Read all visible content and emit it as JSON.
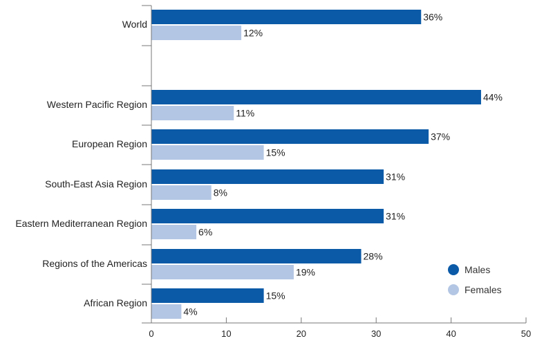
{
  "chart_data": {
    "type": "bar",
    "orientation": "horizontal",
    "categories": [
      "World",
      "Western Pacific Region",
      "European Region",
      "South-East Asia Region",
      "Eastern Mediterranean Region",
      "Regions of the Americas",
      "African Region"
    ],
    "series": [
      {
        "name": "Males",
        "color": "#0a5aa8",
        "values": [
          36,
          44,
          37,
          31,
          31,
          28,
          15
        ]
      },
      {
        "name": "Females",
        "color": "#b3c6e3",
        "values": [
          12,
          11,
          15,
          8,
          6,
          19,
          4
        ]
      }
    ],
    "value_labels": {
      "Males": [
        "36%",
        "44%",
        "37%",
        "31%",
        "31%",
        "28%",
        "15%"
      ],
      "Females": [
        "12%",
        "11%",
        "15%",
        "8%",
        "6%",
        "19%",
        "4%"
      ]
    },
    "xlim": [
      0,
      50
    ],
    "xticks": [
      0,
      10,
      20,
      30,
      40,
      50
    ],
    "xtick_labels": [
      "0",
      "10",
      "20",
      "30",
      "40",
      "50"
    ],
    "legend": {
      "placement": "bottom-right",
      "entries": [
        "Males",
        "Females"
      ]
    },
    "grid": false
  }
}
